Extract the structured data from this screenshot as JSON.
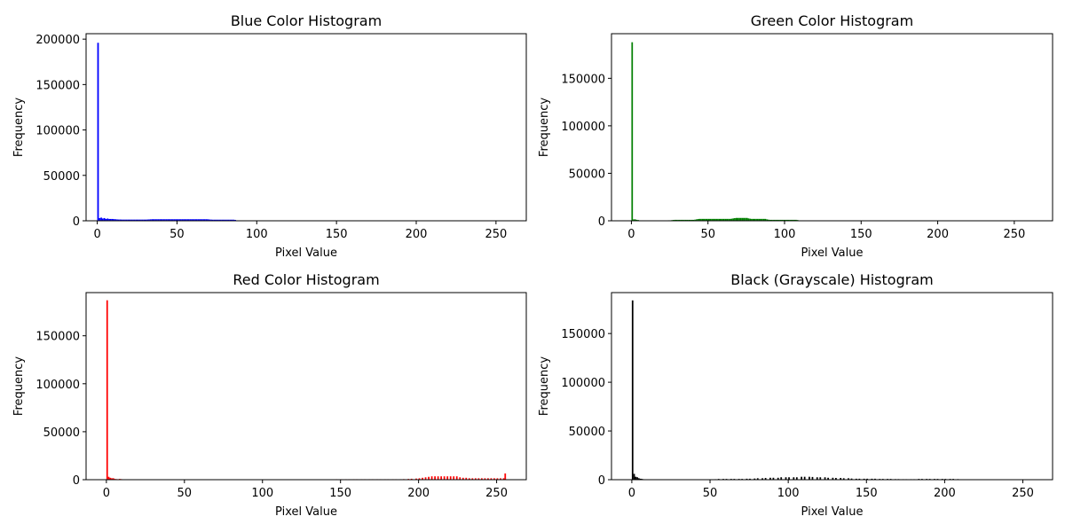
{
  "chart_data": [
    {
      "type": "bar",
      "title": "Blue Color Histogram",
      "xlabel": "Pixel Value",
      "ylabel": "Frequency",
      "color": "#0000ff",
      "xlim": [
        -7,
        269
      ],
      "ylim": [
        0,
        206000
      ],
      "xticks": [
        0,
        50,
        100,
        150,
        200,
        250
      ],
      "yticks": [
        0,
        50000,
        100000,
        150000,
        200000
      ],
      "bins": [
        [
          0,
          196000
        ],
        [
          1,
          3000
        ],
        [
          2,
          3500
        ],
        [
          3,
          2500
        ],
        [
          4,
          3000
        ],
        [
          5,
          2000
        ],
        [
          6,
          2500
        ],
        [
          7,
          2000
        ],
        [
          8,
          2000
        ],
        [
          9,
          2000
        ],
        [
          10,
          1800
        ],
        [
          11,
          1700
        ],
        [
          12,
          1500
        ],
        [
          13,
          1400
        ],
        [
          14,
          1400
        ],
        [
          15,
          1300
        ],
        [
          16,
          1300
        ],
        [
          17,
          1300
        ],
        [
          18,
          1300
        ],
        [
          19,
          1300
        ],
        [
          20,
          1300
        ],
        [
          21,
          1300
        ],
        [
          22,
          1300
        ],
        [
          23,
          1300
        ],
        [
          24,
          1300
        ],
        [
          25,
          1300
        ],
        [
          26,
          1300
        ],
        [
          27,
          1300
        ],
        [
          28,
          1300
        ],
        [
          29,
          1300
        ],
        [
          30,
          1300
        ],
        [
          31,
          1400
        ],
        [
          32,
          1500
        ],
        [
          33,
          1600
        ],
        [
          34,
          1700
        ],
        [
          35,
          1700
        ],
        [
          36,
          1700
        ],
        [
          37,
          1700
        ],
        [
          38,
          1700
        ],
        [
          39,
          1700
        ],
        [
          40,
          1700
        ],
        [
          41,
          1700
        ],
        [
          42,
          1700
        ],
        [
          43,
          1700
        ],
        [
          44,
          1700
        ],
        [
          45,
          1700
        ],
        [
          46,
          1700
        ],
        [
          47,
          1700
        ],
        [
          48,
          1700
        ],
        [
          49,
          1700
        ],
        [
          50,
          1700
        ],
        [
          51,
          1700
        ],
        [
          52,
          1700
        ],
        [
          53,
          1700
        ],
        [
          54,
          1700
        ],
        [
          55,
          1700
        ],
        [
          56,
          1700
        ],
        [
          57,
          1700
        ],
        [
          58,
          1700
        ],
        [
          59,
          1700
        ],
        [
          60,
          1700
        ],
        [
          61,
          1700
        ],
        [
          62,
          1700
        ],
        [
          63,
          1700
        ],
        [
          64,
          1700
        ],
        [
          65,
          1700
        ],
        [
          66,
          1700
        ],
        [
          67,
          1700
        ],
        [
          68,
          1700
        ],
        [
          69,
          1600
        ],
        [
          70,
          1400
        ],
        [
          71,
          1300
        ],
        [
          72,
          1200
        ],
        [
          73,
          1200
        ],
        [
          74,
          1200
        ],
        [
          75,
          1200
        ],
        [
          76,
          1200
        ],
        [
          77,
          1200
        ],
        [
          78,
          1200
        ],
        [
          79,
          1200
        ],
        [
          80,
          1200
        ],
        [
          81,
          1200
        ],
        [
          82,
          1200
        ],
        [
          83,
          1200
        ],
        [
          84,
          1200
        ],
        [
          85,
          1200
        ],
        [
          86,
          1000
        ],
        [
          87,
          500
        ],
        [
          88,
          200
        ],
        [
          89,
          100
        ],
        [
          90,
          50
        ]
      ]
    },
    {
      "type": "bar",
      "title": "Green Color Histogram",
      "xlabel": "Pixel Value",
      "ylabel": "Frequency",
      "color": "#008000",
      "xlim": [
        -13,
        275
      ],
      "ylim": [
        0,
        197000
      ],
      "xticks": [
        0,
        50,
        100,
        150,
        200,
        250
      ],
      "yticks": [
        0,
        50000,
        100000,
        150000
      ],
      "bins": [
        [
          0,
          188000
        ],
        [
          1,
          1500
        ],
        [
          2,
          1500
        ],
        [
          3,
          1000
        ],
        [
          4,
          800
        ],
        [
          5,
          300
        ],
        [
          24,
          500
        ],
        [
          25,
          500
        ],
        [
          26,
          700
        ],
        [
          27,
          900
        ],
        [
          28,
          1000
        ],
        [
          29,
          1000
        ],
        [
          30,
          1000
        ],
        [
          31,
          1000
        ],
        [
          32,
          1000
        ],
        [
          33,
          1000
        ],
        [
          34,
          1000
        ],
        [
          35,
          1000
        ],
        [
          36,
          1000
        ],
        [
          37,
          1000
        ],
        [
          38,
          1000
        ],
        [
          39,
          1000
        ],
        [
          40,
          1000
        ],
        [
          41,
          1200
        ],
        [
          42,
          1500
        ],
        [
          43,
          1800
        ],
        [
          44,
          2000
        ],
        [
          45,
          2000
        ],
        [
          46,
          2000
        ],
        [
          47,
          2000
        ],
        [
          48,
          2000
        ],
        [
          49,
          2000
        ],
        [
          50,
          2000
        ],
        [
          51,
          2000
        ],
        [
          52,
          2000
        ],
        [
          53,
          2000
        ],
        [
          54,
          2000
        ],
        [
          55,
          2000
        ],
        [
          56,
          2000
        ],
        [
          57,
          2000
        ],
        [
          58,
          2000
        ],
        [
          59,
          2000
        ],
        [
          60,
          2000
        ],
        [
          61,
          2000
        ],
        [
          62,
          2000
        ],
        [
          63,
          2000
        ],
        [
          64,
          2000
        ],
        [
          65,
          2200
        ],
        [
          66,
          2500
        ],
        [
          67,
          2800
        ],
        [
          68,
          3000
        ],
        [
          69,
          3000
        ],
        [
          70,
          3000
        ],
        [
          71,
          3000
        ],
        [
          72,
          3000
        ],
        [
          73,
          3000
        ],
        [
          74,
          3000
        ],
        [
          75,
          3000
        ],
        [
          76,
          2500
        ],
        [
          77,
          2200
        ],
        [
          78,
          2000
        ],
        [
          79,
          2000
        ],
        [
          80,
          2000
        ],
        [
          81,
          2000
        ],
        [
          82,
          2000
        ],
        [
          83,
          2000
        ],
        [
          84,
          2000
        ],
        [
          85,
          2000
        ],
        [
          86,
          2000
        ],
        [
          87,
          2000
        ],
        [
          88,
          1500
        ],
        [
          89,
          1200
        ],
        [
          90,
          1000
        ],
        [
          91,
          1000
        ],
        [
          92,
          1000
        ],
        [
          93,
          1000
        ],
        [
          94,
          1000
        ],
        [
          95,
          1000
        ],
        [
          96,
          1000
        ],
        [
          97,
          1000
        ],
        [
          98,
          1000
        ],
        [
          99,
          1000
        ],
        [
          100,
          1000
        ],
        [
          101,
          1000
        ],
        [
          102,
          1000
        ],
        [
          103,
          1000
        ],
        [
          104,
          1000
        ],
        [
          105,
          1000
        ],
        [
          106,
          1000
        ],
        [
          107,
          1000
        ],
        [
          108,
          800
        ],
        [
          109,
          400
        ],
        [
          110,
          100
        ]
      ]
    },
    {
      "type": "bar",
      "title": "Red Color Histogram",
      "xlabel": "Pixel Value",
      "ylabel": "Frequency",
      "color": "#ff0000",
      "xlim": [
        -13,
        269
      ],
      "ylim": [
        0,
        195000
      ],
      "xticks": [
        0,
        50,
        100,
        150,
        200,
        250
      ],
      "yticks": [
        0,
        50000,
        100000,
        150000
      ],
      "bins": [
        [
          0,
          187000
        ],
        [
          1,
          3000
        ],
        [
          2,
          2000
        ],
        [
          3,
          1500
        ],
        [
          4,
          1500
        ],
        [
          5,
          800
        ],
        [
          6,
          600
        ],
        [
          7,
          500
        ],
        [
          8,
          800
        ],
        [
          9,
          600
        ],
        [
          10,
          300
        ],
        [
          143,
          300
        ],
        [
          145,
          400
        ],
        [
          147,
          500
        ],
        [
          150,
          500
        ],
        [
          153,
          500
        ],
        [
          155,
          500
        ],
        [
          158,
          500
        ],
        [
          160,
          500
        ],
        [
          163,
          500
        ],
        [
          165,
          500
        ],
        [
          168,
          500
        ],
        [
          170,
          500
        ],
        [
          173,
          500
        ],
        [
          175,
          500
        ],
        [
          178,
          500
        ],
        [
          180,
          500
        ],
        [
          183,
          500
        ],
        [
          185,
          500
        ],
        [
          188,
          500
        ],
        [
          190,
          600
        ],
        [
          193,
          800
        ],
        [
          195,
          1000
        ],
        [
          198,
          1200
        ],
        [
          200,
          1500
        ],
        [
          202,
          2000
        ],
        [
          204,
          2500
        ],
        [
          206,
          3000
        ],
        [
          208,
          3500
        ],
        [
          210,
          3500
        ],
        [
          212,
          3500
        ],
        [
          214,
          3500
        ],
        [
          216,
          3500
        ],
        [
          218,
          3500
        ],
        [
          220,
          3500
        ],
        [
          222,
          3500
        ],
        [
          224,
          3500
        ],
        [
          226,
          2500
        ],
        [
          228,
          2000
        ],
        [
          230,
          2000
        ],
        [
          232,
          1500
        ],
        [
          234,
          1500
        ],
        [
          236,
          1500
        ],
        [
          238,
          1500
        ],
        [
          240,
          1500
        ],
        [
          242,
          1500
        ],
        [
          244,
          1500
        ],
        [
          246,
          1500
        ],
        [
          248,
          1500
        ],
        [
          250,
          1500
        ],
        [
          252,
          1500
        ],
        [
          254,
          1500
        ],
        [
          255,
          6500
        ]
      ]
    },
    {
      "type": "bar",
      "title": "Black (Grayscale) Histogram",
      "xlabel": "Pixel Value",
      "ylabel": "Frequency",
      "color": "#000000",
      "xlim": [
        -13,
        269
      ],
      "ylim": [
        0,
        192000
      ],
      "xticks": [
        0,
        50,
        100,
        150,
        200,
        250
      ],
      "yticks": [
        0,
        50000,
        100000,
        150000
      ],
      "bins": [
        [
          0,
          184000
        ],
        [
          1,
          6000
        ],
        [
          2,
          3000
        ],
        [
          3,
          2500
        ],
        [
          4,
          1500
        ],
        [
          5,
          1000
        ],
        [
          6,
          800
        ],
        [
          7,
          500
        ],
        [
          8,
          300
        ],
        [
          50,
          300
        ],
        [
          53,
          500
        ],
        [
          55,
          800
        ],
        [
          58,
          800
        ],
        [
          60,
          800
        ],
        [
          63,
          800
        ],
        [
          65,
          800
        ],
        [
          68,
          800
        ],
        [
          70,
          800
        ],
        [
          73,
          1000
        ],
        [
          75,
          1000
        ],
        [
          78,
          1200
        ],
        [
          80,
          1500
        ],
        [
          83,
          1500
        ],
        [
          85,
          1800
        ],
        [
          88,
          2000
        ],
        [
          90,
          2000
        ],
        [
          93,
          2000
        ],
        [
          95,
          2500
        ],
        [
          98,
          2500
        ],
        [
          100,
          2500
        ],
        [
          103,
          2500
        ],
        [
          105,
          2500
        ],
        [
          108,
          3000
        ],
        [
          110,
          3000
        ],
        [
          113,
          3000
        ],
        [
          115,
          2800
        ],
        [
          118,
          2500
        ],
        [
          120,
          2500
        ],
        [
          123,
          2500
        ],
        [
          125,
          2000
        ],
        [
          128,
          2000
        ],
        [
          130,
          1800
        ],
        [
          133,
          1800
        ],
        [
          135,
          1500
        ],
        [
          138,
          1500
        ],
        [
          140,
          1200
        ],
        [
          143,
          1000
        ],
        [
          145,
          1000
        ],
        [
          148,
          1000
        ],
        [
          150,
          1000
        ],
        [
          153,
          1000
        ],
        [
          155,
          1000
        ],
        [
          158,
          800
        ],
        [
          160,
          800
        ],
        [
          163,
          800
        ],
        [
          165,
          800
        ],
        [
          168,
          600
        ],
        [
          170,
          600
        ],
        [
          173,
          500
        ],
        [
          175,
          500
        ],
        [
          178,
          500
        ],
        [
          180,
          500
        ],
        [
          183,
          800
        ],
        [
          185,
          800
        ],
        [
          188,
          800
        ],
        [
          190,
          800
        ],
        [
          193,
          800
        ],
        [
          195,
          800
        ],
        [
          198,
          800
        ],
        [
          200,
          800
        ],
        [
          203,
          800
        ],
        [
          205,
          800
        ],
        [
          208,
          600
        ],
        [
          210,
          300
        ]
      ]
    }
  ]
}
